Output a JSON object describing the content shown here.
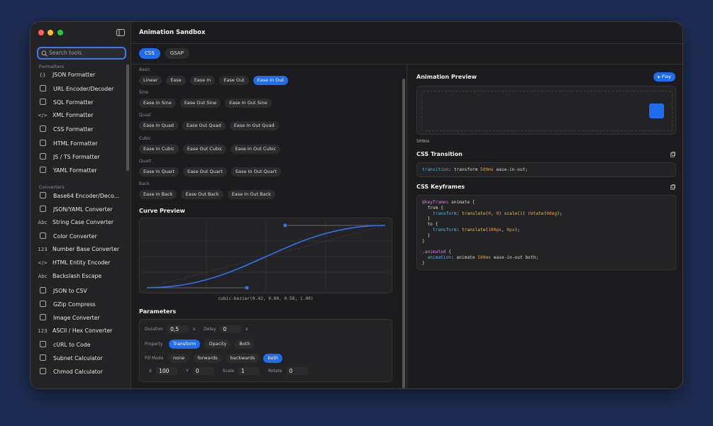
{
  "sidebar": {
    "search_placeholder": "Search tools",
    "sections": [
      {
        "title": "Formatters",
        "items": [
          {
            "icon": "{}",
            "label": "JSON Formatter"
          },
          {
            "label": "URL Encoder/Decoder"
          },
          {
            "label": "SQL Formatter"
          },
          {
            "icon": "</>",
            "label": "XML Formatter"
          },
          {
            "label": "CSS Formatter"
          },
          {
            "label": "HTML Formatter"
          },
          {
            "label": "JS / TS Formatter"
          },
          {
            "label": "YAML Formatter"
          }
        ]
      },
      {
        "title": "Converters",
        "items": [
          {
            "label": "Base64 Encoder/Deco..."
          },
          {
            "label": "JSON/YAML Converter"
          },
          {
            "icon": "Abc",
            "label": "String Case Converter"
          },
          {
            "label": "Color Converter"
          },
          {
            "icon": "123",
            "label": "Number Base Converter"
          },
          {
            "icon": "</>",
            "label": "HTML Entity Encoder"
          },
          {
            "icon": "Abc",
            "label": "Backslash Escape"
          },
          {
            "label": "JSON to CSV"
          },
          {
            "label": "GZip Compress"
          },
          {
            "label": "Image Converter"
          },
          {
            "icon": "123",
            "label": "ASCII / Hex Converter"
          },
          {
            "label": "cURL to Code"
          },
          {
            "label": "Subnet Calculator"
          },
          {
            "label": "Chmod Calculator"
          }
        ]
      }
    ]
  },
  "header": {
    "title": "Animation Sandbox",
    "tabs": [
      "CSS",
      "GSAP"
    ],
    "active_tab": 0
  },
  "presets": {
    "active_group": 0,
    "active_item": 4,
    "groups": [
      {
        "name": "Basic",
        "items": [
          "Linear",
          "Ease",
          "Ease In",
          "Ease Out",
          "Ease In Out"
        ]
      },
      {
        "name": "Sine",
        "items": [
          "Ease In Sine",
          "Ease Out Sine",
          "Ease In Out Sine"
        ]
      },
      {
        "name": "Quad",
        "items": [
          "Ease In Quad",
          "Ease Out Quad",
          "Ease In Out Quad"
        ]
      },
      {
        "name": "Cubic",
        "items": [
          "Ease In Cubic",
          "Ease Out Cubic",
          "Ease In Out Cubic"
        ]
      },
      {
        "name": "Quart",
        "items": [
          "Ease In Quart",
          "Ease Out Quart",
          "Ease In Out Quart"
        ]
      },
      {
        "name": "Back",
        "items": [
          "Ease In Back",
          "Ease Out Back",
          "Ease In Out Back"
        ]
      }
    ]
  },
  "curve": {
    "title": "Curve Preview",
    "formula": "cubic-bezier(0.42, 0.00, 0.58, 1.00)"
  },
  "parameters": {
    "title": "Parameters",
    "duration": {
      "label": "Duration",
      "value": "0,5",
      "unit": "s"
    },
    "delay": {
      "label": "Delay",
      "value": "0",
      "unit": "s"
    },
    "property": {
      "label": "Property",
      "options": [
        "Transform",
        "Opacity",
        "Both"
      ],
      "active": 0
    },
    "fill_mode": {
      "label": "Fill Mode",
      "options": [
        "none",
        "forwards",
        "backwards",
        "both"
      ],
      "active": 3
    },
    "transform": [
      {
        "label": "X",
        "value": 100
      },
      {
        "label": "Y",
        "value": 0
      },
      {
        "label": "Scale",
        "value": 1
      },
      {
        "label": "Rotate",
        "value": 0
      }
    ]
  },
  "preview": {
    "title": "Animation Preview",
    "play": "Play",
    "duration": "500ms",
    "transition_title": "CSS Transition",
    "transition_code": "transition: transform 500ms ease-in-out;",
    "keyframes_title": "CSS Keyframes",
    "keyframes_code": [
      "@keyframes animate {",
      "  from {",
      "    transform: translate(0, 0) scale(1) rotate(0deg);",
      "  }",
      "  to {",
      "    transform: translate(100px, 0px);",
      "  }",
      "}",
      "",
      ".animated {",
      "  animation: animate 500ms ease-in-out both;",
      "}"
    ]
  }
}
